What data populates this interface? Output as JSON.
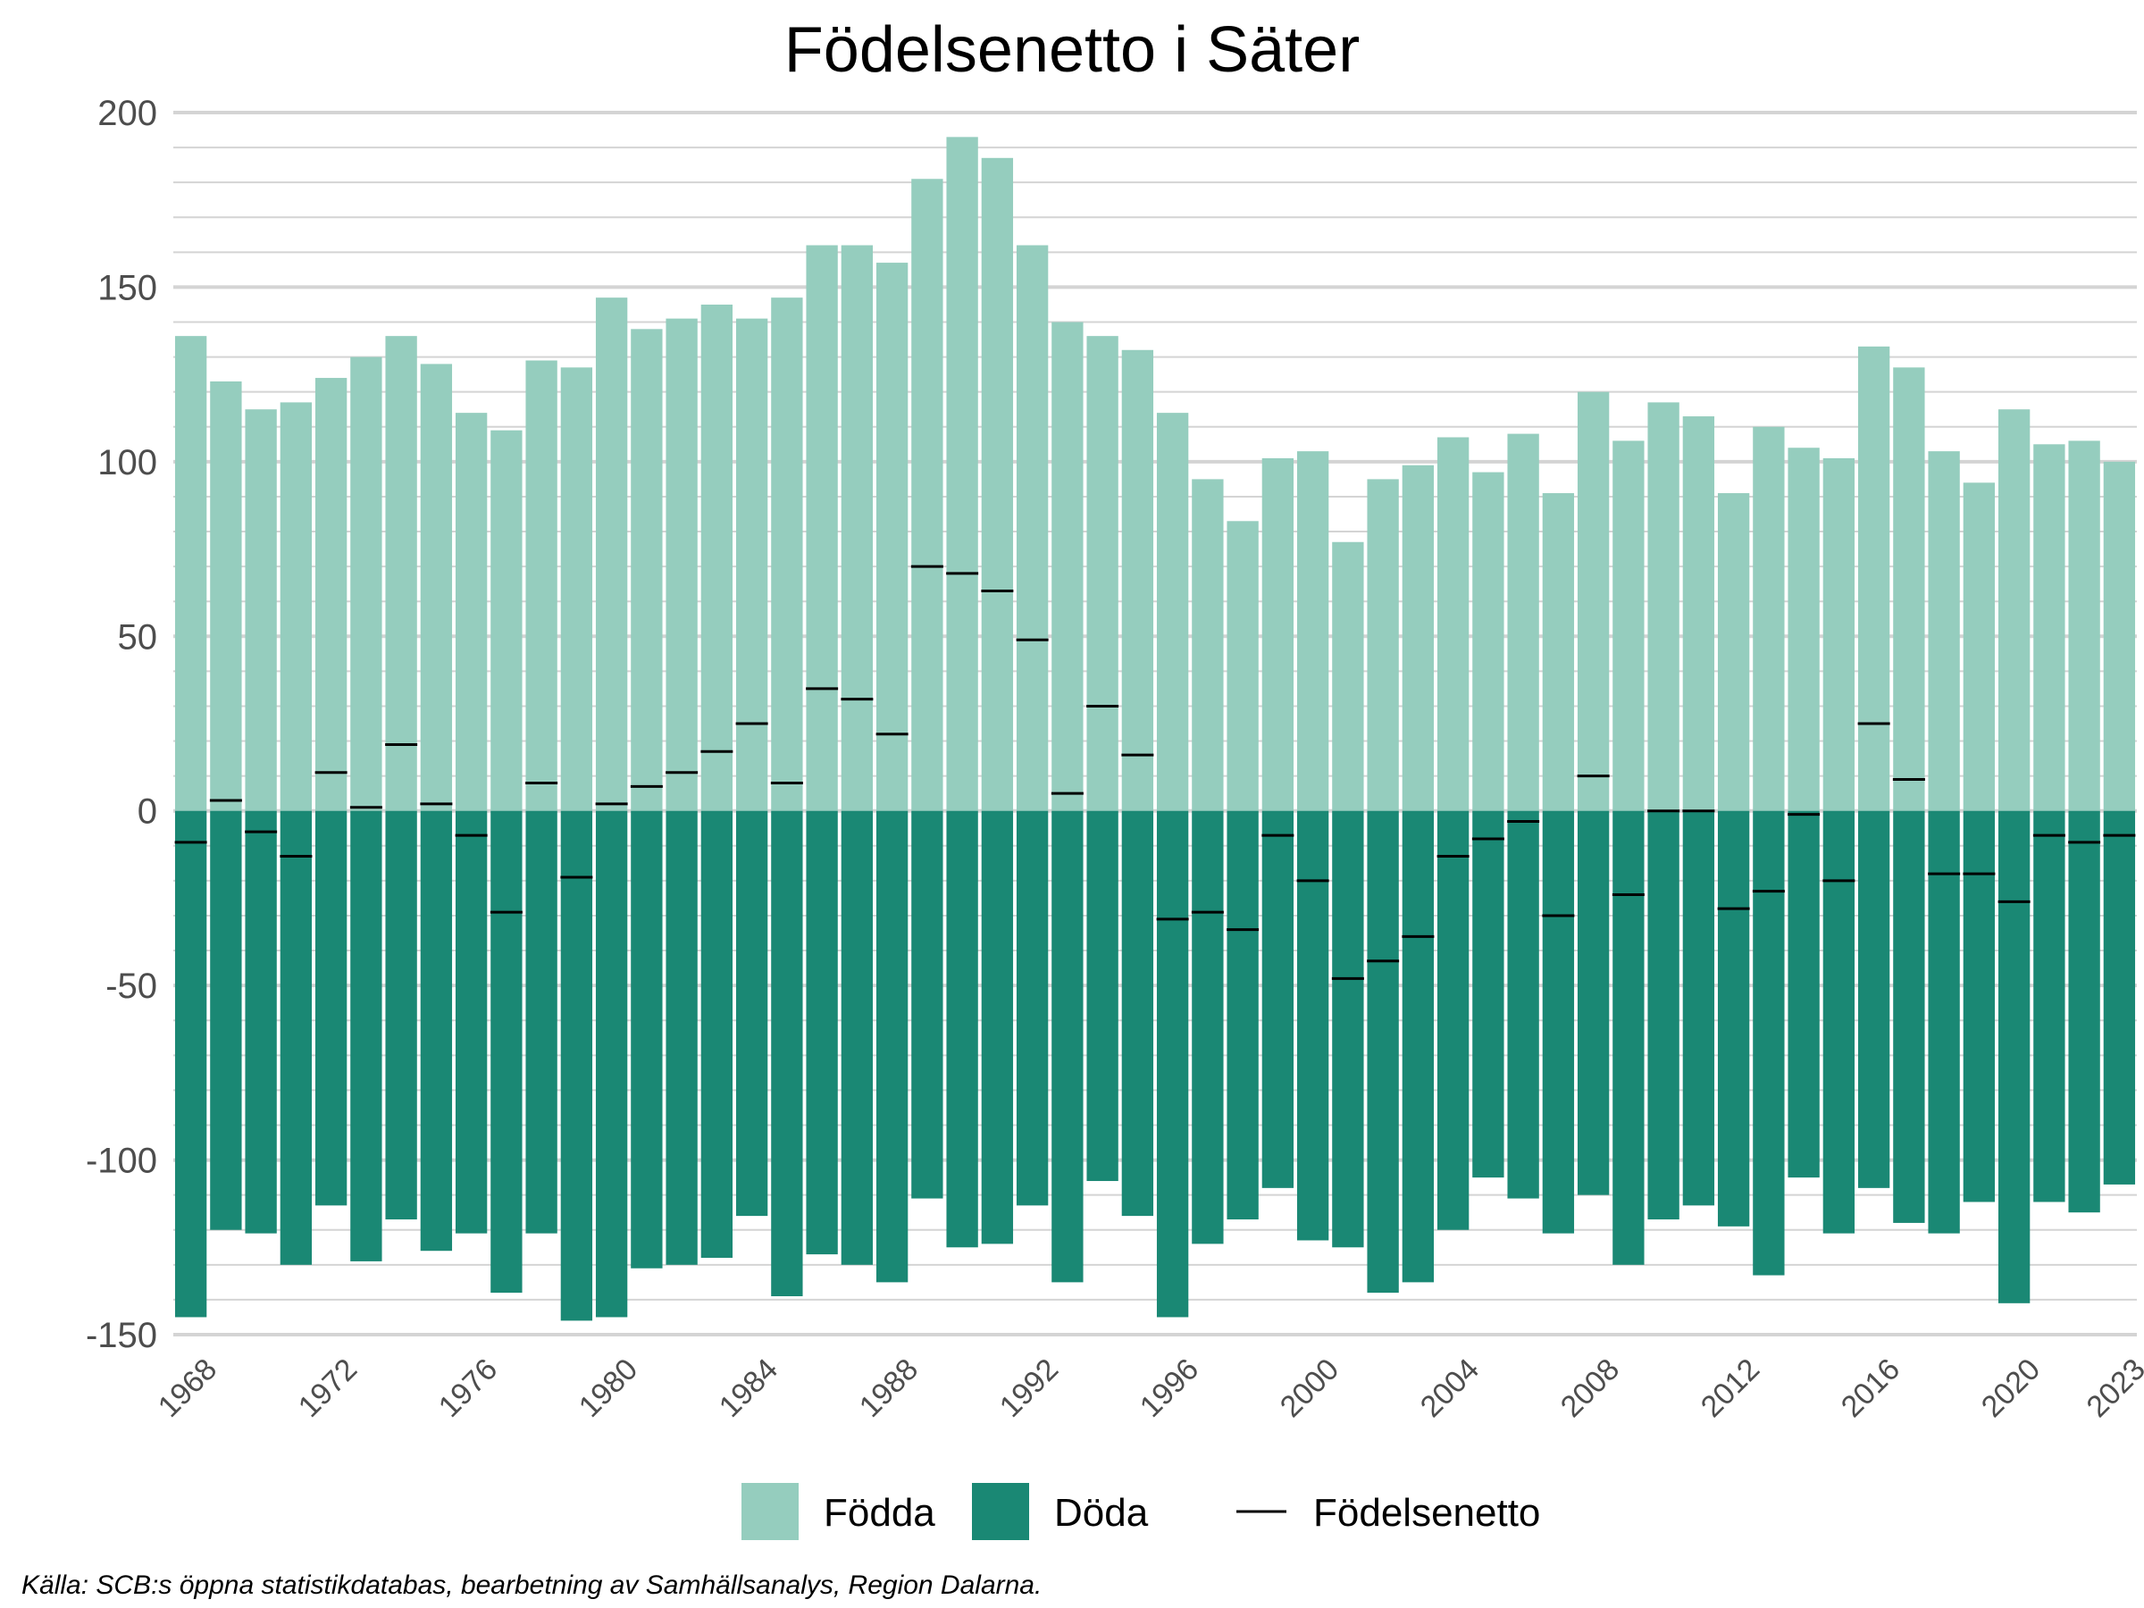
{
  "chart_data": {
    "type": "bar",
    "title": "Födelsenetto i Säter",
    "caption": "Källa: SCB:s öppna statistikdatabas, bearbetning av Samhällsanalys, Region Dalarna.",
    "ylim": [
      -150,
      200
    ],
    "yticks": [
      "200",
      "150",
      "100",
      "50",
      "0",
      "-50",
      "-100",
      "-150"
    ],
    "xticks": [
      "1968",
      "1972",
      "1976",
      "1980",
      "1984",
      "1988",
      "1992",
      "1996",
      "2000",
      "2004",
      "2008",
      "2012",
      "2016",
      "2020",
      "2023"
    ],
    "grid": true,
    "legend_position": "bottom",
    "categories": [
      1968,
      1969,
      1970,
      1971,
      1972,
      1973,
      1974,
      1975,
      1976,
      1977,
      1978,
      1979,
      1980,
      1981,
      1982,
      1983,
      1984,
      1985,
      1986,
      1987,
      1988,
      1989,
      1990,
      1991,
      1992,
      1993,
      1994,
      1995,
      1996,
      1997,
      1998,
      1999,
      2000,
      2001,
      2002,
      2003,
      2004,
      2005,
      2006,
      2007,
      2008,
      2009,
      2010,
      2011,
      2012,
      2013,
      2014,
      2015,
      2016,
      2017,
      2018,
      2019,
      2020,
      2021,
      2022,
      2023
    ],
    "series": [
      {
        "name": "Födda",
        "color": "#95CDBE",
        "values": [
          136,
          123,
          115,
          117,
          124,
          130,
          136,
          128,
          114,
          109,
          129,
          127,
          147,
          138,
          141,
          145,
          141,
          147,
          162,
          162,
          157,
          181,
          193,
          187,
          162,
          140,
          136,
          132,
          114,
          95,
          83,
          101,
          103,
          77,
          95,
          99,
          107,
          97,
          108,
          91,
          120,
          106,
          117,
          113,
          91,
          110,
          104,
          101,
          133,
          127,
          103,
          94,
          115,
          105,
          106,
          100
        ]
      },
      {
        "name": "Döda",
        "color": "#1A8874",
        "values": [
          -145,
          -120,
          -121,
          -130,
          -113,
          -129,
          -117,
          -126,
          -121,
          -138,
          -121,
          -146,
          -145,
          -131,
          -130,
          -128,
          -116,
          -139,
          -127,
          -130,
          -135,
          -111,
          -125,
          -124,
          -113,
          -135,
          -106,
          -116,
          -145,
          -124,
          -117,
          -108,
          -123,
          -125,
          -138,
          -135,
          -120,
          -105,
          -111,
          -121,
          -110,
          -130,
          -117,
          -113,
          -119,
          -133,
          -105,
          -121,
          -108,
          -118,
          -121,
          -112,
          -141,
          -112,
          -115,
          -107
        ]
      },
      {
        "name": "Födelsenetto",
        "color": "#000000",
        "values": [
          -9,
          3,
          -6,
          -13,
          11,
          1,
          19,
          2,
          -7,
          -29,
          8,
          -19,
          2,
          7,
          11,
          17,
          25,
          8,
          35,
          32,
          22,
          70,
          68,
          63,
          49,
          5,
          30,
          16,
          -31,
          -29,
          -34,
          -7,
          -20,
          -48,
          -43,
          -36,
          -13,
          -8,
          -3,
          -30,
          10,
          -24,
          0,
          0,
          -28,
          -23,
          -1,
          -20,
          25,
          9,
          -18,
          -18,
          -26,
          -7,
          -9,
          -7
        ]
      }
    ]
  }
}
